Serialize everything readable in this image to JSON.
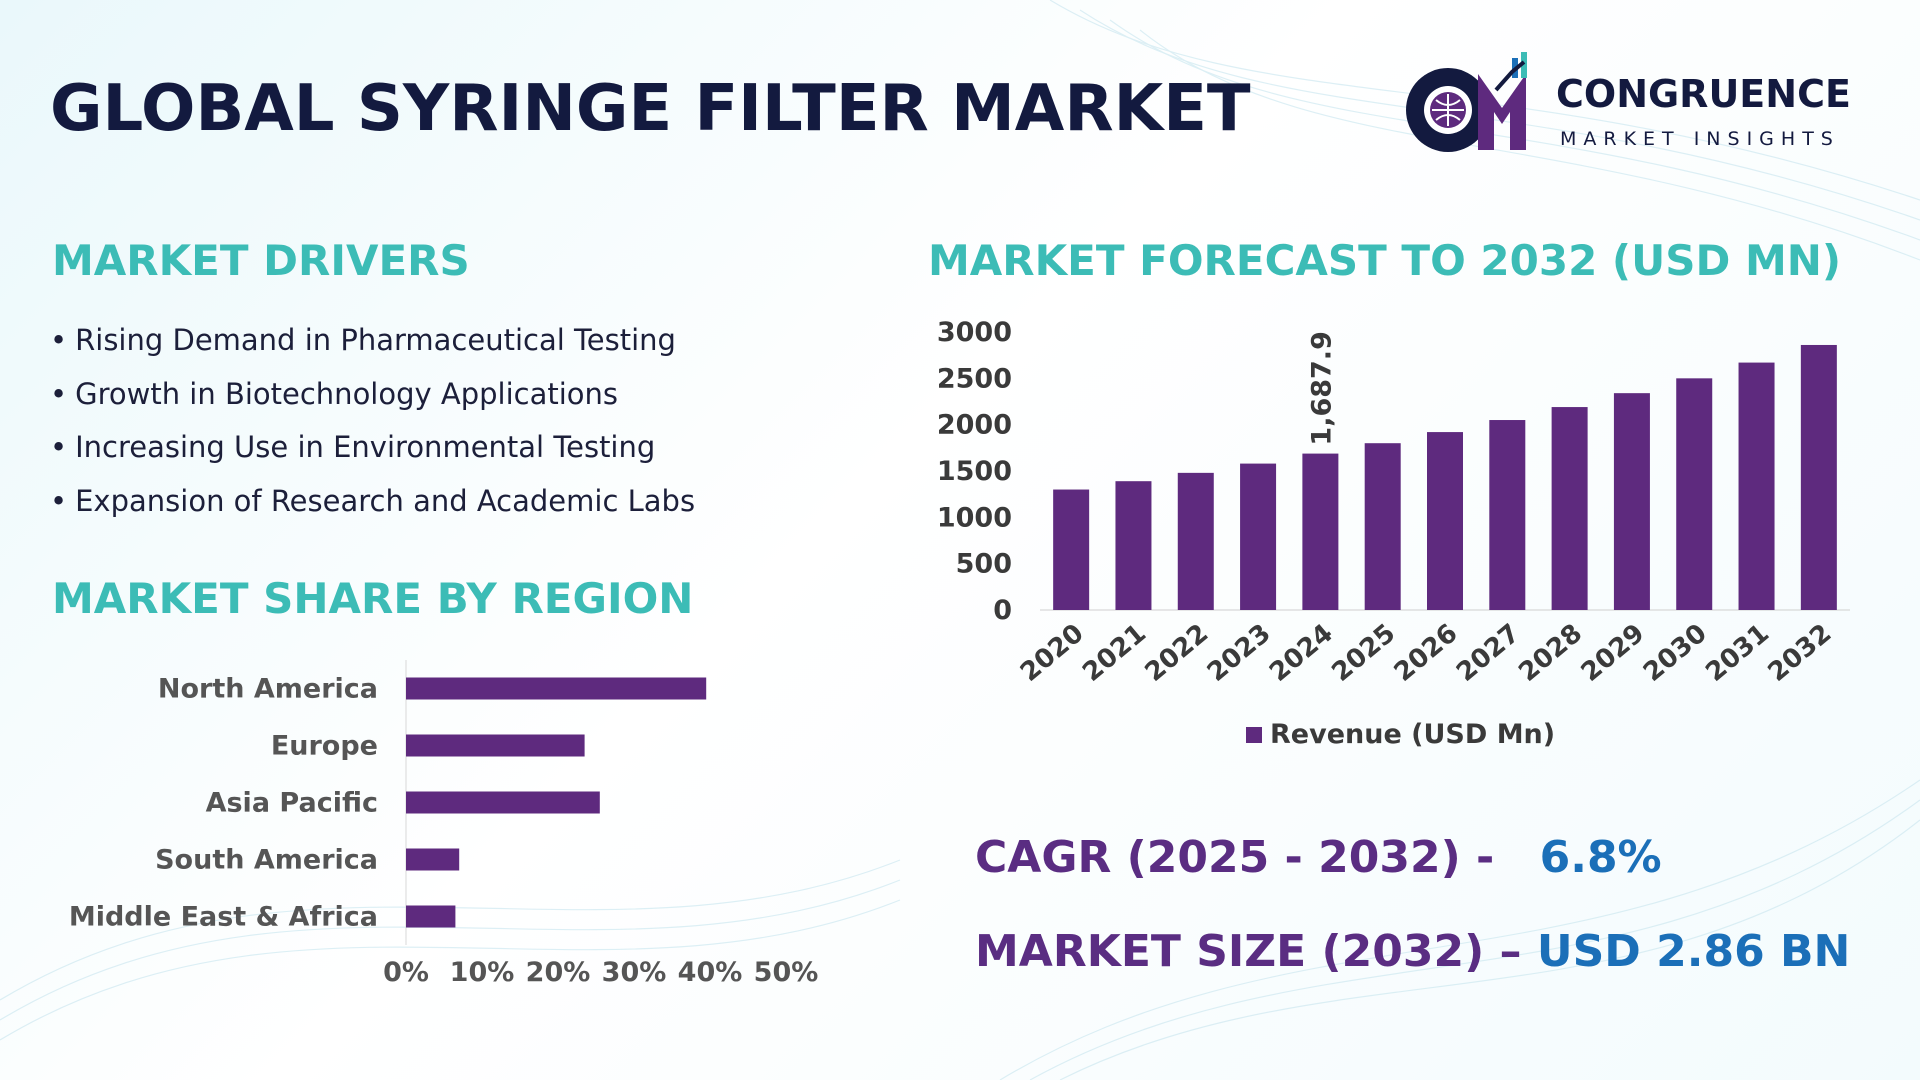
{
  "title": "GLOBAL SYRINGE FILTER MARKET",
  "logo": {
    "name": "CONGRUENCE",
    "tagline": "MARKET INSIGHTS"
  },
  "drivers": {
    "heading": "MARKET DRIVERS",
    "items": [
      "Rising Demand in Pharmaceutical Testing",
      "Growth in Biotechnology Applications",
      "Increasing Use in Environmental Testing",
      "Expansion of Research and Academic Labs"
    ]
  },
  "region": {
    "heading": "MARKET SHARE BY REGION"
  },
  "forecast": {
    "heading": "MARKET FORECAST TO 2032 (USD MN)"
  },
  "stats": {
    "cagr_label": "CAGR (2025 - 2032) -",
    "cagr_value": "6.8%",
    "size_label": "MARKET SIZE (2032) –",
    "size_value": "USD 2.86 BN"
  },
  "colors": {
    "bar": "#5e2a7e",
    "heading": "#3cbcb6",
    "title": "#131a3f",
    "stat_label": "#5a2d82",
    "stat_value": "#1b6fb8"
  },
  "chart_data": [
    {
      "type": "bar",
      "orientation": "vertical",
      "categories": [
        "2020",
        "2021",
        "2022",
        "2023",
        "2024",
        "2025",
        "2026",
        "2027",
        "2028",
        "2029",
        "2030",
        "2031",
        "2032"
      ],
      "series": [
        {
          "name": "Revenue (USD Mn)",
          "values": [
            1300,
            1390,
            1480,
            1580,
            1687.9,
            1800,
            1920,
            2050,
            2190,
            2340,
            2500,
            2670,
            2860
          ]
        }
      ],
      "data_labels": [
        {
          "index": 4,
          "text": "1,687.9"
        }
      ],
      "ylim": [
        0,
        3000
      ],
      "yticks": [
        "0",
        "500",
        "1000",
        "1500",
        "2000",
        "2500",
        "3000"
      ],
      "legend": "bottom",
      "grid": false
    },
    {
      "type": "bar",
      "orientation": "horizontal",
      "categories": [
        "North America",
        "Europe",
        "Asia Pacific",
        "South America",
        "Middle East & Africa"
      ],
      "values": [
        0.395,
        0.235,
        0.255,
        0.07,
        0.065
      ],
      "xlim": [
        0,
        0.5
      ],
      "xticks": [
        "0%",
        "10%",
        "20%",
        "30%",
        "40%",
        "50%"
      ],
      "grid": false
    }
  ]
}
